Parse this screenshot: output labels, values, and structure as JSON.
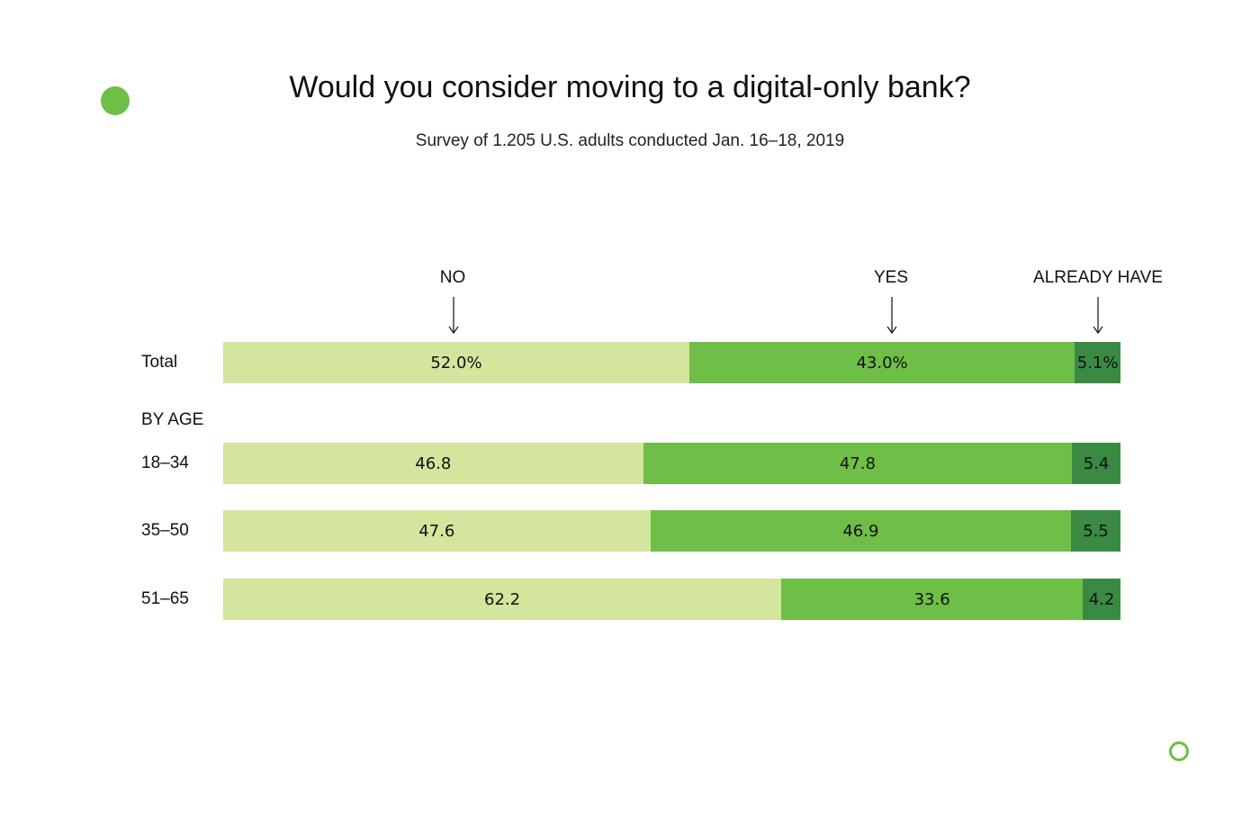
{
  "chart_data": {
    "type": "bar",
    "orientation": "horizontal",
    "stacked": true,
    "title": "Would you consider moving to a digital-only bank?",
    "subtitle": "Survey of 1.205 U.S. adults conducted Jan. 16–18, 2019",
    "series": [
      {
        "name": "NO",
        "color": "#d4e59e"
      },
      {
        "name": "YES",
        "color": "#6fbe47"
      },
      {
        "name": "ALREADY HAVE",
        "color": "#3a8a44"
      }
    ],
    "section_label": "BY AGE",
    "rows": [
      {
        "label": "Total",
        "values": [
          52.0,
          43.0,
          5.1
        ],
        "display": [
          "52.0%",
          "43.0%",
          "5.1%"
        ]
      },
      {
        "label": "18–34",
        "values": [
          46.8,
          47.8,
          5.4
        ],
        "display": [
          "46.8",
          "47.8",
          "5.4"
        ]
      },
      {
        "label": "35–50",
        "values": [
          47.6,
          46.9,
          5.5
        ],
        "display": [
          "47.6",
          "46.9",
          "5.5"
        ]
      },
      {
        "label": "51–65",
        "values": [
          62.2,
          33.6,
          4.2
        ],
        "display": [
          "62.2",
          "33.6",
          "4.2"
        ]
      }
    ],
    "grid": false,
    "legend_position": "top"
  },
  "colors": {
    "accent": "#6fbe47"
  }
}
